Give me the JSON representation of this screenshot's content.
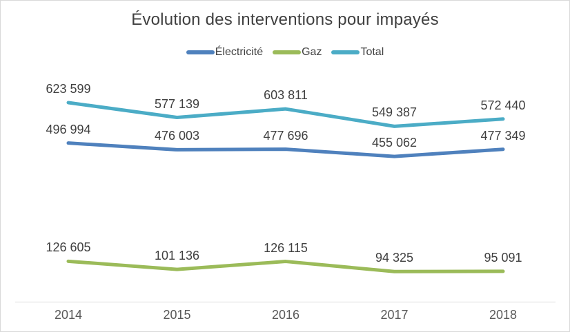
{
  "chart_data": {
    "type": "line",
    "title": "Évolution des interventions pour impayés",
    "categories": [
      "2014",
      "2015",
      "2016",
      "2017",
      "2018"
    ],
    "series": [
      {
        "name": "Électricité",
        "color": "#4F81BD",
        "values": [
          496994,
          476003,
          477696,
          455062,
          477349
        ]
      },
      {
        "name": "Gaz",
        "color": "#9BBB59",
        "values": [
          126605,
          101136,
          126115,
          94325,
          95091
        ]
      },
      {
        "name": "Total",
        "color": "#4BACC6",
        "values": [
          623599,
          577139,
          603811,
          549387,
          572440
        ]
      }
    ],
    "ylim": [
      0,
      650000
    ],
    "grid": false,
    "y_axis_labels": false,
    "legend_position": "top-center",
    "data_labels": true,
    "number_format": "space-thousands",
    "axis_line_color": "#D9D9D9",
    "text_color": "#404040",
    "axis_text_color": "#595959"
  }
}
